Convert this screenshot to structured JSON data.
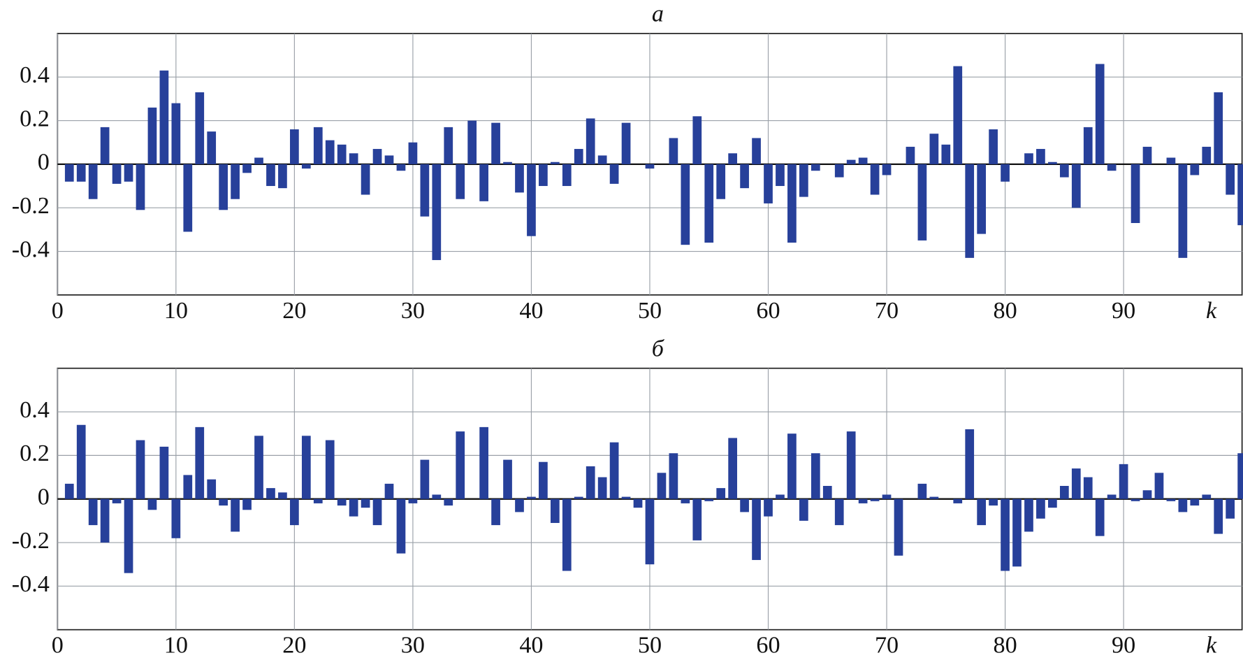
{
  "chart_data": [
    {
      "type": "bar",
      "title": "а",
      "x_label": "k",
      "x": [
        1,
        2,
        3,
        4,
        5,
        6,
        7,
        8,
        9,
        10,
        11,
        12,
        13,
        14,
        15,
        16,
        17,
        18,
        19,
        20,
        21,
        22,
        23,
        24,
        25,
        26,
        27,
        28,
        29,
        30,
        31,
        32,
        33,
        34,
        35,
        36,
        37,
        38,
        39,
        40,
        41,
        42,
        43,
        44,
        45,
        46,
        47,
        48,
        49,
        50,
        51,
        52,
        53,
        54,
        55,
        56,
        57,
        58,
        59,
        60,
        61,
        62,
        63,
        64,
        65,
        66,
        67,
        68,
        69,
        70,
        71,
        72,
        73,
        74,
        75,
        76,
        77,
        78,
        79,
        80,
        81,
        82,
        83,
        84,
        85,
        86,
        87,
        88,
        89,
        90,
        91,
        92,
        93,
        94,
        95,
        96,
        97,
        98,
        99,
        100
      ],
      "values": [
        -0.08,
        -0.08,
        -0.16,
        0.17,
        -0.09,
        -0.08,
        -0.21,
        0.26,
        0.43,
        0.28,
        -0.31,
        0.33,
        0.15,
        -0.21,
        -0.16,
        -0.04,
        0.03,
        -0.1,
        -0.11,
        0.16,
        -0.02,
        0.17,
        0.11,
        0.09,
        0.05,
        -0.14,
        0.07,
        0.04,
        -0.03,
        0.1,
        -0.24,
        -0.44,
        0.17,
        -0.16,
        0.2,
        -0.17,
        0.19,
        0.01,
        -0.13,
        -0.33,
        -0.1,
        0.01,
        -0.1,
        0.07,
        0.21,
        0.04,
        -0.09,
        0.19,
        0,
        -0.02,
        0,
        0.12,
        -0.37,
        0.22,
        -0.36,
        -0.16,
        0.05,
        -0.11,
        0.12,
        -0.18,
        -0.1,
        -0.36,
        -0.15,
        -0.03,
        0,
        -0.06,
        0.02,
        0.03,
        -0.14,
        -0.05,
        0,
        0.08,
        -0.35,
        0.14,
        0.09,
        0.45,
        -0.43,
        -0.32,
        0.16,
        -0.08,
        0,
        0.05,
        0.07,
        0.01,
        -0.06,
        -0.2,
        0.17,
        0.46,
        -0.03,
        0,
        -0.27,
        0.08,
        0,
        0.03,
        -0.43,
        -0.05,
        0.08,
        0.33,
        -0.14,
        -0.28
      ],
      "color": "#27409a",
      "xlim": [
        0,
        100
      ],
      "xticks": [
        0,
        10,
        20,
        30,
        40,
        50,
        60,
        70,
        80,
        90
      ],
      "ylim": [
        -0.6,
        0.6
      ],
      "yticks": [
        0.4,
        0.2,
        0,
        -0.2,
        -0.4
      ],
      "grid": true
    },
    {
      "type": "bar",
      "title": "б",
      "x_label": "k",
      "x": [
        1,
        2,
        3,
        4,
        5,
        6,
        7,
        8,
        9,
        10,
        11,
        12,
        13,
        14,
        15,
        16,
        17,
        18,
        19,
        20,
        21,
        22,
        23,
        24,
        25,
        26,
        27,
        28,
        29,
        30,
        31,
        32,
        33,
        34,
        35,
        36,
        37,
        38,
        39,
        40,
        41,
        42,
        43,
        44,
        45,
        46,
        47,
        48,
        49,
        50,
        51,
        52,
        53,
        54,
        55,
        56,
        57,
        58,
        59,
        60,
        61,
        62,
        63,
        64,
        65,
        66,
        67,
        68,
        69,
        70,
        71,
        72,
        73,
        74,
        75,
        76,
        77,
        78,
        79,
        80,
        81,
        82,
        83,
        84,
        85,
        86,
        87,
        88,
        89,
        90,
        91,
        92,
        93,
        94,
        95,
        96,
        97,
        98,
        99,
        100
      ],
      "values": [
        0.07,
        0.34,
        -0.12,
        -0.2,
        -0.02,
        -0.34,
        0.27,
        -0.05,
        0.24,
        -0.18,
        0.11,
        0.33,
        0.09,
        -0.03,
        -0.15,
        -0.05,
        0.29,
        0.05,
        0.03,
        -0.12,
        0.29,
        -0.02,
        0.27,
        -0.03,
        -0.08,
        -0.04,
        -0.12,
        0.07,
        -0.25,
        -0.02,
        0.18,
        0.02,
        -0.03,
        0.31,
        0,
        0.33,
        -0.12,
        0.18,
        -0.06,
        0.01,
        0.17,
        -0.11,
        -0.33,
        0.01,
        0.15,
        0.1,
        0.26,
        0.01,
        -0.04,
        -0.3,
        0.12,
        0.21,
        -0.02,
        -0.19,
        -0.01,
        0.05,
        0.28,
        -0.06,
        -0.28,
        -0.08,
        0.02,
        0.3,
        -0.1,
        0.21,
        0.06,
        -0.12,
        0.31,
        -0.02,
        -0.01,
        0.02,
        -0.26,
        0,
        0.07,
        0.01,
        0,
        -0.02,
        0.32,
        -0.12,
        -0.03,
        -0.33,
        -0.31,
        -0.15,
        -0.09,
        -0.04,
        0.06,
        0.14,
        0.1,
        -0.17,
        0.02,
        0.16,
        -0.01,
        0.04,
        0.12,
        -0.01,
        -0.06,
        -0.03,
        0.02,
        -0.16,
        -0.09,
        0.21
      ],
      "color": "#27409a",
      "xlim": [
        0,
        100
      ],
      "xticks": [
        0,
        10,
        20,
        30,
        40,
        50,
        60,
        70,
        80,
        90
      ],
      "ylim": [
        -0.6,
        0.6
      ],
      "yticks": [
        0.4,
        0.2,
        0,
        -0.2,
        -0.4
      ],
      "grid": true
    }
  ]
}
